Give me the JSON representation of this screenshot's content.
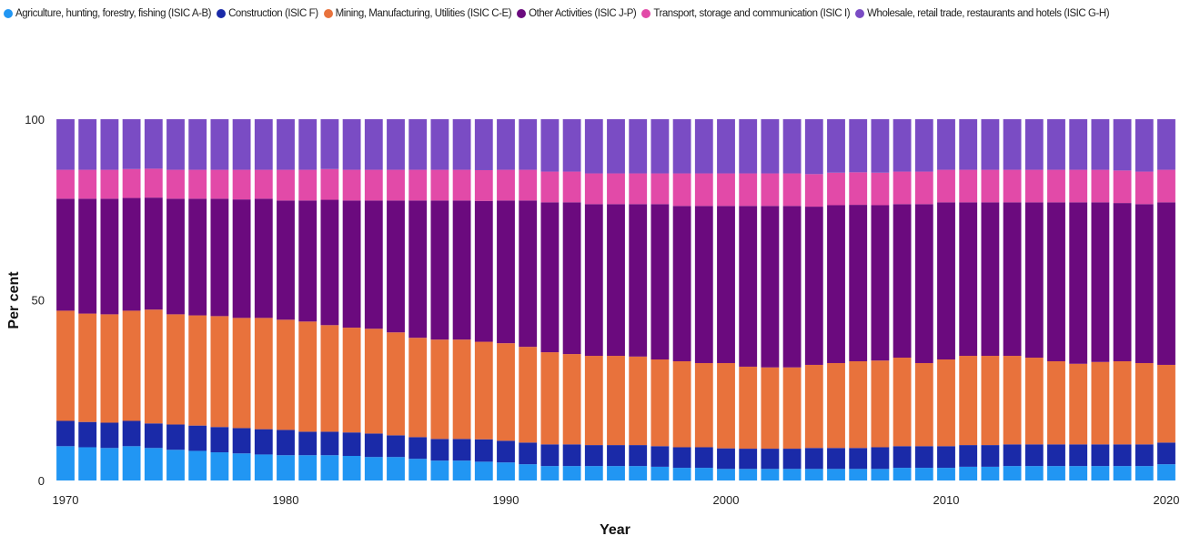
{
  "chart_data": {
    "type": "bar",
    "stacked": true,
    "xlabel": "Year",
    "ylabel": "Per cent",
    "ylim": [
      0,
      100
    ],
    "ytick_labels": [
      "0",
      "50",
      "100"
    ],
    "xtick_labels": [
      "1970",
      "1980",
      "1990",
      "2000",
      "2010",
      "2020"
    ],
    "legend_position": "top",
    "grid": false,
    "categories": [
      1970,
      1971,
      1972,
      1973,
      1974,
      1975,
      1976,
      1977,
      1978,
      1979,
      1980,
      1981,
      1982,
      1983,
      1984,
      1985,
      1986,
      1987,
      1988,
      1989,
      1990,
      1991,
      1992,
      1993,
      1994,
      1995,
      1996,
      1997,
      1998,
      1999,
      2000,
      2001,
      2002,
      2003,
      2004,
      2005,
      2006,
      2007,
      2008,
      2009,
      2010,
      2011,
      2012,
      2013,
      2014,
      2015,
      2016,
      2017,
      2018,
      2019,
      2020
    ],
    "series": [
      {
        "name": "Agriculture, hunting, forestry, fishing (ISIC A-B)",
        "color": "#2196f3",
        "values": [
          9.5,
          9.2,
          9.0,
          9.5,
          9.0,
          8.5,
          8.2,
          7.8,
          7.5,
          7.2,
          7.0,
          7.0,
          7.0,
          6.8,
          6.5,
          6.5,
          6.0,
          5.5,
          5.5,
          5.2,
          5.0,
          4.5,
          4.0,
          4.0,
          4.0,
          4.0,
          4.0,
          3.8,
          3.5,
          3.5,
          3.2,
          3.2,
          3.2,
          3.2,
          3.2,
          3.2,
          3.2,
          3.2,
          3.5,
          3.5,
          3.5,
          3.8,
          3.8,
          4.0,
          4.0,
          4.0,
          4.0,
          4.0,
          4.0,
          4.0,
          4.5
        ]
      },
      {
        "name": "Construction (ISIC F)",
        "color": "#1a2aa8",
        "values": [
          7.0,
          7.0,
          7.0,
          7.0,
          6.8,
          7.0,
          7.0,
          7.0,
          7.0,
          7.0,
          7.0,
          6.5,
          6.5,
          6.5,
          6.5,
          6.0,
          6.0,
          6.0,
          6.0,
          6.2,
          6.0,
          6.0,
          6.0,
          6.0,
          5.8,
          5.8,
          5.8,
          5.7,
          5.7,
          5.7,
          5.7,
          5.6,
          5.6,
          5.6,
          5.8,
          5.8,
          5.8,
          6.0,
          6.0,
          6.0,
          6.0,
          6.0,
          6.0,
          6.0,
          6.0,
          6.0,
          6.0,
          6.0,
          6.0,
          6.0,
          6.0
        ]
      },
      {
        "name": "Mining, Manufacturing, Utilities (ISIC C-E)",
        "color": "#e8723c",
        "values": [
          30.5,
          30.0,
          30.0,
          30.5,
          31.5,
          30.5,
          30.5,
          30.7,
          30.5,
          30.8,
          30.5,
          30.5,
          29.5,
          29.0,
          29.0,
          28.5,
          27.5,
          27.5,
          27.5,
          27.0,
          27.0,
          26.5,
          25.5,
          25.0,
          24.7,
          24.7,
          24.5,
          24.0,
          23.8,
          23.3,
          23.6,
          22.7,
          22.5,
          22.5,
          23.0,
          23.5,
          24.0,
          24.0,
          24.5,
          23.0,
          24.0,
          24.7,
          24.7,
          24.5,
          24.0,
          23.0,
          22.3,
          22.8,
          23.0,
          22.5,
          21.5
        ]
      },
      {
        "name": "Other Activities (ISIC J-P)",
        "color": "#6b0a7e",
        "values": [
          31.0,
          31.8,
          32.0,
          31.2,
          31.0,
          32.0,
          32.3,
          32.5,
          32.8,
          33.0,
          33.0,
          33.5,
          34.7,
          35.2,
          35.5,
          36.5,
          38.0,
          38.5,
          38.5,
          39.0,
          39.5,
          40.5,
          41.5,
          42.0,
          42.0,
          42.0,
          42.2,
          43.0,
          43.0,
          43.5,
          43.5,
          44.5,
          44.7,
          44.7,
          43.8,
          43.7,
          43.3,
          43.0,
          42.5,
          44.0,
          43.5,
          42.5,
          42.5,
          42.5,
          43.0,
          44.0,
          44.7,
          44.2,
          43.8,
          44.0,
          45.0
        ]
      },
      {
        "name": "Transport, storage and communication (ISIC I)",
        "color": "#e24aa8",
        "values": [
          8.0,
          8.0,
          8.0,
          8.0,
          8.0,
          8.0,
          8.0,
          8.0,
          8.2,
          8.0,
          8.5,
          8.5,
          8.5,
          8.5,
          8.5,
          8.5,
          8.5,
          8.5,
          8.5,
          8.5,
          8.5,
          8.5,
          8.5,
          8.5,
          8.5,
          8.5,
          8.5,
          8.5,
          9.0,
          9.0,
          9.0,
          9.0,
          9.0,
          9.0,
          9.0,
          9.0,
          9.0,
          9.0,
          9.0,
          9.0,
          9.0,
          9.0,
          9.0,
          9.0,
          9.0,
          9.0,
          9.0,
          9.0,
          9.0,
          9.0,
          9.0
        ]
      },
      {
        "name": "Wholesale, retail trade, restaurants and hotels (ISIC G-H)",
        "color": "#7a4cc4",
        "values": [
          14.0,
          14.0,
          14.0,
          13.8,
          13.7,
          14.0,
          14.0,
          14.0,
          14.0,
          14.0,
          14.0,
          14.0,
          13.8,
          14.0,
          14.0,
          14.0,
          14.0,
          14.0,
          14.0,
          14.1,
          14.0,
          14.0,
          14.5,
          14.5,
          15.0,
          15.0,
          15.0,
          15.0,
          15.0,
          15.0,
          15.0,
          15.0,
          15.0,
          15.0,
          15.2,
          14.8,
          14.7,
          14.8,
          14.5,
          14.5,
          14.0,
          14.0,
          14.0,
          14.0,
          14.0,
          14.0,
          14.0,
          14.0,
          14.2,
          14.5,
          14.0
        ]
      }
    ]
  }
}
